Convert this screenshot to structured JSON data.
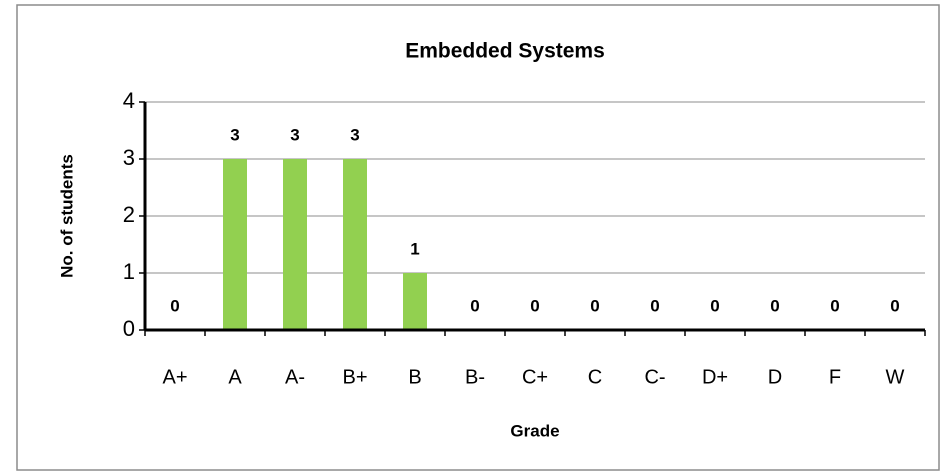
{
  "chart_data": {
    "type": "bar",
    "title": "Embedded Systems",
    "x_label": "Grade",
    "y_label": "No. of students",
    "categories": [
      "A+",
      "A",
      "A-",
      "B+",
      "B",
      "B-",
      "C+",
      "C",
      "C-",
      "D+",
      "D",
      "F",
      "W"
    ],
    "values": [
      0,
      3,
      3,
      3,
      1,
      0,
      0,
      0,
      0,
      0,
      0,
      0,
      0
    ],
    "color": "#92d050",
    "ylim": [
      0,
      4
    ],
    "yticks": [
      0,
      1,
      2,
      3,
      4
    ],
    "grid": true,
    "data_labels": true
  }
}
